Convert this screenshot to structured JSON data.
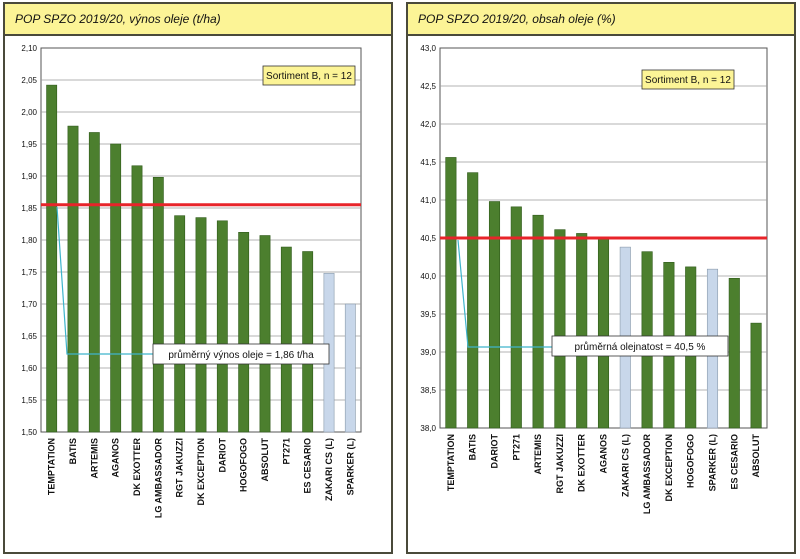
{
  "colors": {
    "panel_header_bg": "#fcf496",
    "bar_main": "#4c7f2e",
    "bar_light": "#c8d7ea",
    "mean_line": "#e8242a",
    "leader_line": "#3fb4cc",
    "sortiment_box_bg": "#fcf496",
    "plot_bg": "#ffffff"
  },
  "chart_data": [
    {
      "type": "bar",
      "title": "POP SPZO 2019/20, výnos oleje (t/ha)",
      "categories": [
        "TEMPTATION",
        "BATIS",
        "ARTEMIS",
        "AGANOS",
        "DK EXOTTER",
        "LG AMBASSADOR",
        "RGT JAKUZZI",
        "DK EXCEPTION",
        "DARIOT",
        "HOGOFOGO",
        "ABSOLUT",
        "PT271",
        "ES CESARIO",
        "ZAKARI CS (L)",
        "SPARKER (L)"
      ],
      "values": [
        2.042,
        1.978,
        1.968,
        1.95,
        1.916,
        1.898,
        1.838,
        1.835,
        1.83,
        1.812,
        1.807,
        1.789,
        1.782,
        1.748,
        1.7
      ],
      "highlight": [
        false,
        false,
        false,
        false,
        false,
        false,
        false,
        false,
        false,
        false,
        false,
        false,
        false,
        true,
        true
      ],
      "mean_value": 1.855,
      "ylim": [
        1.5,
        2.1
      ],
      "yticks": [
        "1,50",
        "1,55",
        "1,60",
        "1,65",
        "1,70",
        "1,75",
        "1,80",
        "1,85",
        "1,90",
        "1,95",
        "2,00",
        "2,05",
        "2,10"
      ],
      "annotation_box": "Sortiment B, n = 12",
      "mean_label": "průměrný výnos oleje = 1,86 t/ha",
      "grid": true,
      "legend": "none"
    },
    {
      "type": "bar",
      "title": "POP SPZO 2019/20, obsah oleje (%)",
      "categories": [
        "TEMPTATION",
        "BATIS",
        "DARIOT",
        "PT271",
        "ARTEMIS",
        "RGT JAKUZZI",
        "DK EXOTTER",
        "AGANOS",
        "ZAKARI CS (L)",
        "LG AMBASSADOR",
        "DK EXCEPTION",
        "HOGOFOGO",
        "SPARKER (L)",
        "ES CESARIO",
        "ABSOLUT"
      ],
      "values": [
        41.56,
        41.36,
        40.98,
        40.91,
        40.8,
        40.61,
        40.56,
        40.49,
        40.38,
        40.32,
        40.18,
        40.12,
        40.09,
        39.97,
        39.38
      ],
      "highlight": [
        false,
        false,
        false,
        false,
        false,
        false,
        false,
        false,
        true,
        false,
        false,
        false,
        true,
        false,
        false
      ],
      "mean_value": 40.5,
      "ylim": [
        38.0,
        43.0
      ],
      "yticks": [
        "38,0",
        "38,5",
        "39,0",
        "39,5",
        "40,0",
        "40,5",
        "41,0",
        "41,5",
        "42,0",
        "42,5",
        "43,0"
      ],
      "annotation_box": "Sortiment B, n = 12",
      "mean_label": "průměrná olejnatost = 40,5 %",
      "grid": true,
      "legend": "none"
    }
  ]
}
